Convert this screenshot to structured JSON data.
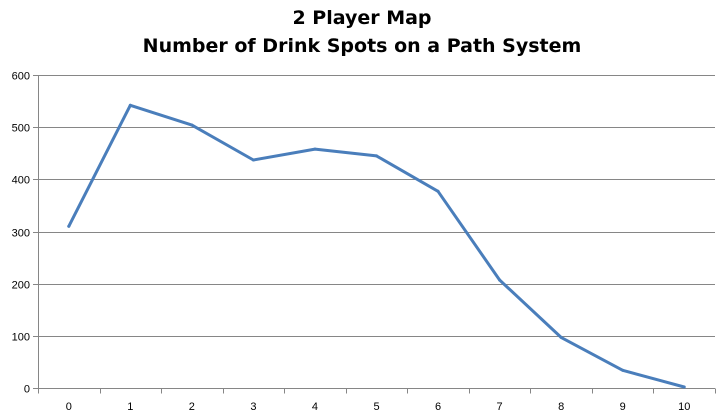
{
  "chart_data": {
    "type": "line",
    "title_lines": [
      "2 Player Map",
      "Number of Drink Spots on a Path System"
    ],
    "xlabel": "",
    "ylabel": "",
    "x": [
      0,
      1,
      2,
      3,
      4,
      5,
      6,
      7,
      8,
      9,
      10
    ],
    "series": [
      {
        "values": [
          310,
          542,
          504,
          437,
          458,
          445,
          377,
          207,
          97,
          34,
          2
        ]
      }
    ],
    "ylim": [
      0,
      600
    ],
    "yticks": [
      0,
      100,
      200,
      300,
      400,
      500,
      600
    ],
    "xticks": [
      0,
      1,
      2,
      3,
      4,
      5,
      6,
      7,
      8,
      9,
      10
    ],
    "grid": "horizontal",
    "legend": "none",
    "colors": {
      "line": "#4a7ebb",
      "grid": "#868686",
      "axis": "#868686"
    }
  }
}
